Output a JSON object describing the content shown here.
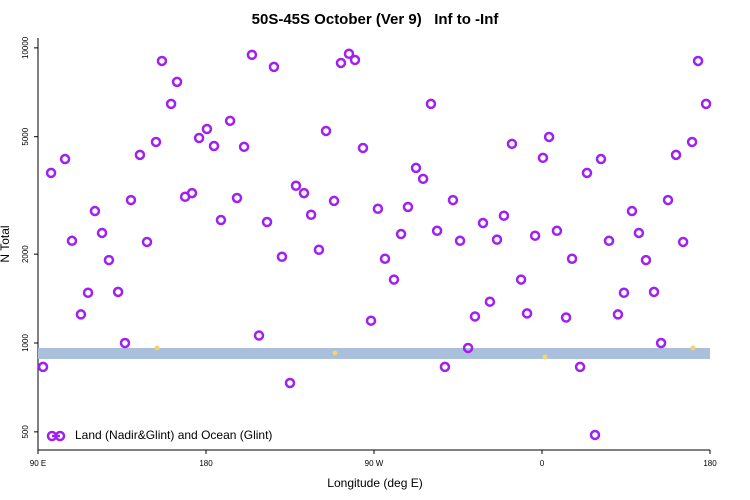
{
  "chart_data": {
    "type": "scatter",
    "title": "50S-45S October (Ver 9)   Inf to -Inf",
    "x_label": "Longitude (deg E)",
    "y_label": "N Total",
    "y_scale": "log",
    "xlim": [
      90,
      450
    ],
    "ylim": [
      434,
      10800
    ],
    "xticks": [
      {
        "value": 90,
        "label": "90 E"
      },
      180,
      {
        "value": 270,
        "label": "90 W"
      },
      {
        "value": 360,
        "label": "0"
      },
      {
        "value": 450,
        "label": "180"
      }
    ],
    "yticks": [
      500,
      1000,
      2000,
      5000,
      10000
    ],
    "grid": false,
    "legend": "bottom-left",
    "band": {
      "range": [
        883,
        962
      ],
      "color": "#a9bfdc"
    },
    "series": [
      {
        "name": "Land (Nadir&Glint) and Ocean (Glint)",
        "color": "#a020f0",
        "x": [
          92.7,
          97.0,
          104.5,
          108.2,
          113.0,
          116.8,
          120.5,
          124.3,
          128.0,
          132.9,
          136.6,
          139.8,
          144.6,
          148.4,
          153.2,
          156.4,
          161.3,
          164.5,
          168.8,
          172.5,
          176.3,
          180.5,
          184.3,
          188.0,
          192.9,
          196.6,
          200.4,
          204.6,
          208.4,
          212.7,
          216.4,
          220.7,
          225.0,
          228.2,
          232.5,
          236.3,
          240.5,
          244.3,
          248.6,
          252.3,
          256.6,
          259.8,
          264.1,
          268.4,
          272.1,
          275.9,
          280.7,
          284.5,
          288.2,
          292.5,
          296.3,
          300.5,
          303.8,
          308.0,
          312.3,
          316.1,
          320.4,
          324.1,
          328.4,
          332.1,
          335.9,
          339.6,
          343.9,
          348.8,
          352.0,
          356.3,
          360.5,
          363.8,
          368.0,
          372.9,
          376.1,
          380.4,
          384.1,
          388.4,
          391.6,
          395.9,
          400.7,
          403.9,
          408.2,
          411.9,
          415.7,
          420.0,
          423.8,
          427.5,
          431.8,
          435.6,
          440.4,
          443.6,
          447.9
        ],
        "values": [
          830,
          3770,
          4200,
          2220,
          1250,
          1480,
          2800,
          2360,
          1910,
          1490,
          1000,
          3050,
          4340,
          2200,
          4800,
          9030,
          6460,
          7670,
          3130,
          3220,
          4950,
          5310,
          4650,
          2610,
          5660,
          3100,
          4620,
          9470,
          1060,
          2570,
          8620,
          1960,
          732,
          3410,
          3220,
          2720,
          2070,
          5230,
          3030,
          8890,
          9550,
          9100,
          4580,
          1190,
          2850,
          1930,
          1640,
          2340,
          2890,
          3920,
          3600,
          6460,
          2400,
          830,
          3050,
          2220,
          962,
          1230,
          2550,
          1380,
          2240,
          2700,
          4730,
          1640,
          1260,
          2310,
          4240,
          4990,
          2400,
          1220,
          1930,
          830,
          3770,
          488,
          4200,
          2220,
          1250,
          1480,
          2800,
          2360,
          1910,
          1490,
          1000,
          3050,
          4340,
          2200,
          4800,
          9030,
          6460
        ]
      },
      {
        "color": "#f5d36b",
        "x": [
          153.8,
          249.1,
          361.6,
          440.9
        ],
        "values": [
          962,
          925,
          897,
          962
        ]
      }
    ]
  }
}
